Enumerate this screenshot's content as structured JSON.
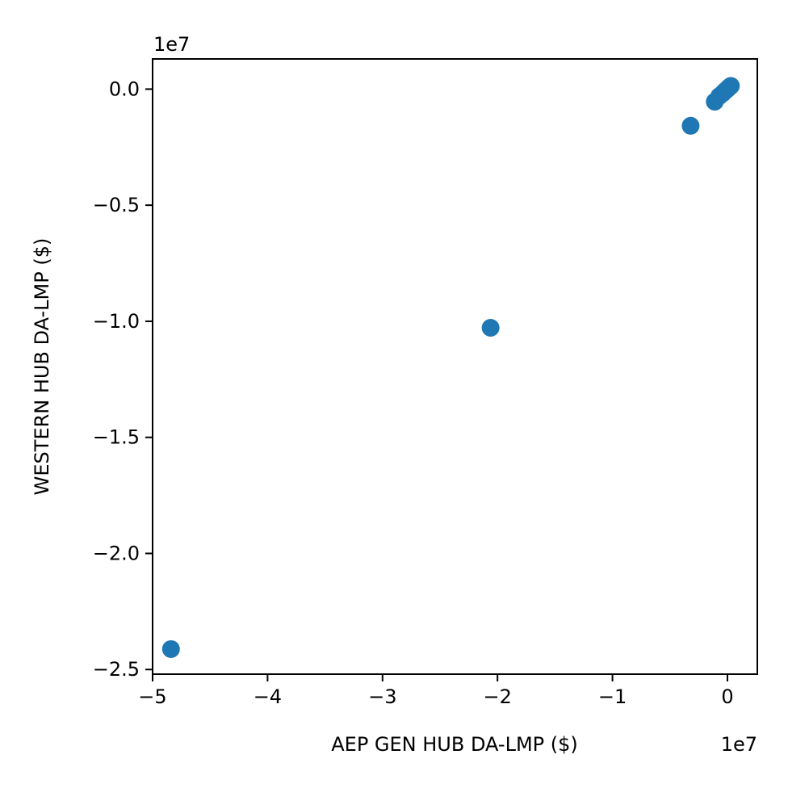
{
  "chart_data": {
    "type": "scatter",
    "title": "",
    "xlabel": "AEP GEN HUB DA-LMP ($)",
    "ylabel": "WESTERN HUB DA-LMP ($)",
    "x_offset_text": "1e7",
    "y_offset_text": "1e7",
    "xlim": [
      -5.0,
      0.26
    ],
    "ylim": [
      -2.52,
      0.13
    ],
    "x_ticks": [
      -5,
      -4,
      -3,
      -2,
      -1,
      0
    ],
    "x_tick_labels": [
      "−5",
      "−4",
      "−3",
      "−2",
      "−1",
      "0"
    ],
    "y_ticks": [
      0.0,
      -0.5,
      -1.0,
      -1.5,
      -2.0,
      -2.5
    ],
    "y_tick_labels": [
      "0.0",
      "−0.5",
      "−1.0",
      "−1.5",
      "−2.0",
      "−2.5"
    ],
    "grid": false,
    "marker_color": "#1f77b4",
    "points": [
      {
        "x": -4.84,
        "y": -2.412
      },
      {
        "x": -2.06,
        "y": -1.028
      },
      {
        "x": -0.32,
        "y": -0.158
      },
      {
        "x": -0.11,
        "y": -0.054
      },
      {
        "x": -0.07,
        "y": -0.03
      },
      {
        "x": -0.04,
        "y": -0.018
      },
      {
        "x": -0.02,
        "y": -0.008
      },
      {
        "x": 0.0,
        "y": 0.0
      },
      {
        "x": 0.01,
        "y": 0.006
      },
      {
        "x": 0.02,
        "y": 0.01
      },
      {
        "x": 0.03,
        "y": 0.014
      }
    ]
  }
}
